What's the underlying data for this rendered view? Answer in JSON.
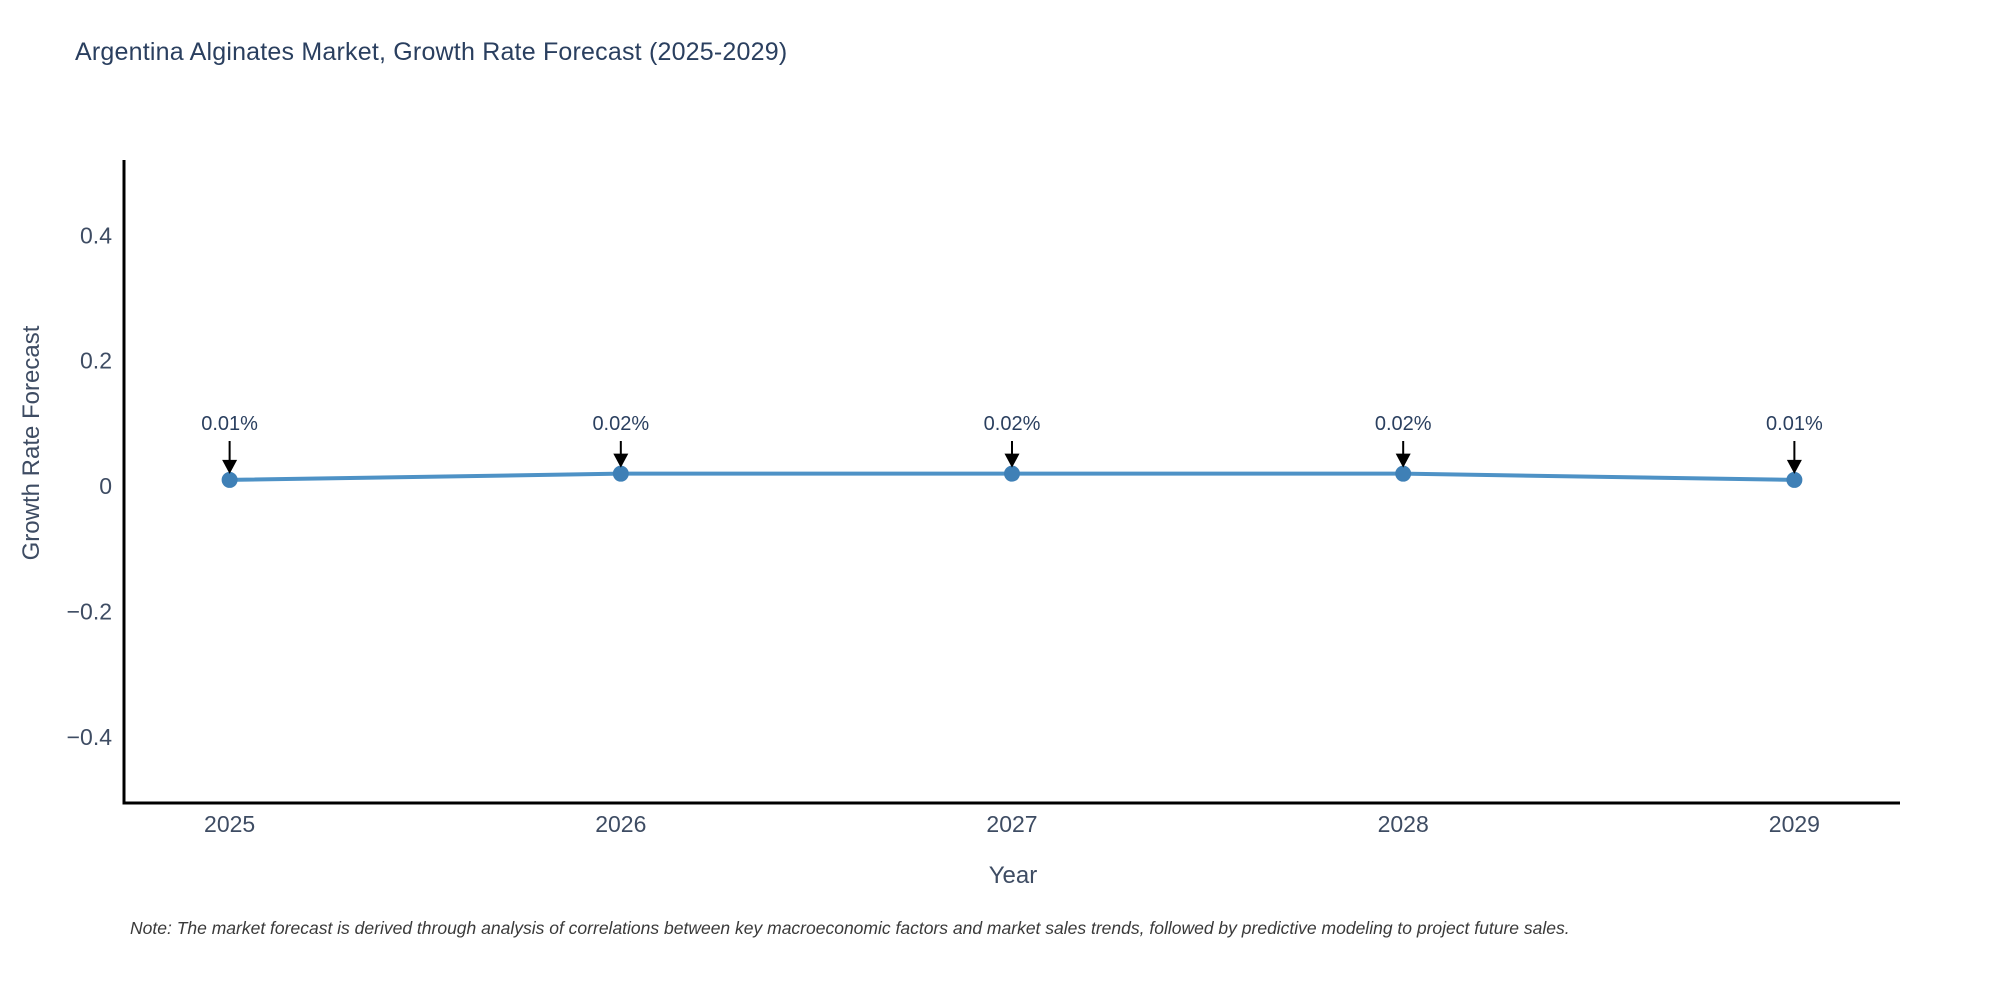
{
  "title": "Argentina Alginates Market, Growth Rate Forecast (2025-2029)",
  "note": "Note: The market forecast is derived through analysis of correlations between key macroeconomic factors and market sales trends, followed by predictive modeling to project future sales.",
  "chart_data": {
    "type": "line",
    "x": [
      2025,
      2026,
      2027,
      2028,
      2029
    ],
    "values": [
      0.01,
      0.02,
      0.02,
      0.02,
      0.01
    ],
    "point_labels": [
      "0.01%",
      "0.02%",
      "0.02%",
      "0.02%",
      "0.01%"
    ],
    "x_tick_labels": [
      "2025",
      "2026",
      "2027",
      "2028",
      "2029"
    ],
    "y_ticks": [
      {
        "value": 0.4,
        "label": "0.4"
      },
      {
        "value": 0.2,
        "label": "0.2"
      },
      {
        "value": 0,
        "label": "0"
      },
      {
        "value": -0.2,
        "label": "−0.2"
      },
      {
        "value": -0.4,
        "label": "−0.4"
      }
    ],
    "xlabel": "Year",
    "ylabel": "Growth Rate Forecast",
    "xlim": [
      2024.73,
      2029.27
    ],
    "ylim": [
      -0.505,
      0.52
    ],
    "grid": false,
    "legend": "none",
    "colors": {
      "line": "#4e92c6",
      "marker": "#3f80b6",
      "arrow": "#000000",
      "axis": "#000000",
      "text": "#2a3f5f",
      "tick_text": "#3e4c63",
      "note_text": "#3a3a3a"
    }
  }
}
